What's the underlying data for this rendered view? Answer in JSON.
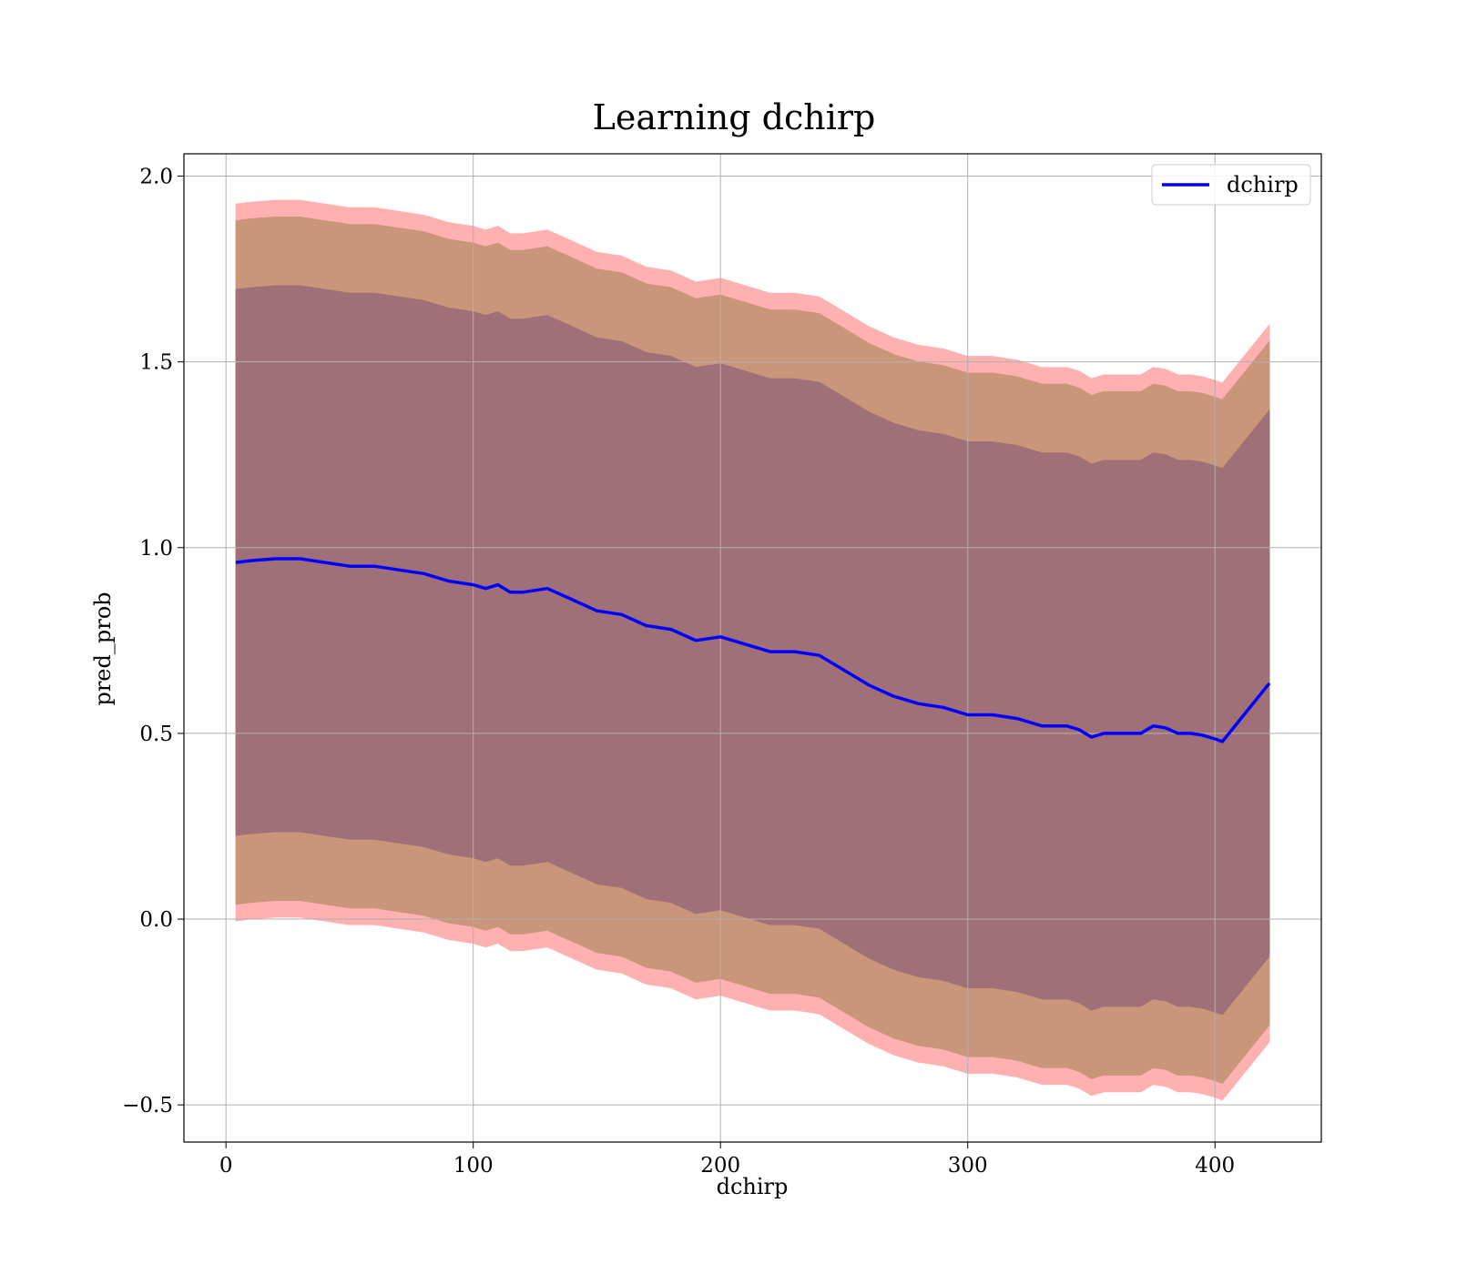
{
  "chart_data": {
    "type": "line",
    "title": "Learning dchirp",
    "xlabel": "dchirp",
    "ylabel": "pred_prob",
    "xlim": [
      -17,
      443
    ],
    "ylim": [
      -0.6,
      2.06
    ],
    "x_ticks": [
      0,
      100,
      200,
      300,
      400
    ],
    "x_tick_labels": [
      "0",
      "100",
      "200",
      "300",
      "400"
    ],
    "y_ticks": [
      -0.5,
      0.0,
      0.5,
      1.0,
      1.5,
      2.0
    ],
    "y_tick_labels": [
      "−0.5",
      "0.0",
      "0.5",
      "1.0",
      "1.5",
      "2.0"
    ],
    "grid": true,
    "legend": {
      "position": "top-right",
      "entries": [
        "dchirp"
      ]
    },
    "colors": {
      "line": "#0000ff",
      "band_outer": "#ffb0b0",
      "band_middle": "#c9967a",
      "band_inner": "#a07078"
    },
    "series": [
      {
        "name": "dchirp",
        "x": [
          4,
          10,
          20,
          30,
          40,
          50,
          60,
          70,
          80,
          90,
          100,
          105,
          110,
          115,
          120,
          130,
          140,
          150,
          160,
          170,
          180,
          190,
          200,
          210,
          220,
          230,
          240,
          250,
          260,
          270,
          280,
          290,
          300,
          310,
          320,
          330,
          340,
          345,
          350,
          355,
          360,
          370,
          375,
          380,
          385,
          390,
          395,
          400,
          403,
          422
        ],
        "y": [
          0.96,
          0.965,
          0.97,
          0.97,
          0.96,
          0.95,
          0.95,
          0.94,
          0.93,
          0.91,
          0.9,
          0.89,
          0.9,
          0.88,
          0.88,
          0.89,
          0.86,
          0.83,
          0.82,
          0.79,
          0.78,
          0.75,
          0.76,
          0.74,
          0.72,
          0.72,
          0.71,
          0.67,
          0.63,
          0.6,
          0.58,
          0.57,
          0.55,
          0.55,
          0.54,
          0.52,
          0.52,
          0.51,
          0.49,
          0.5,
          0.5,
          0.5,
          0.52,
          0.515,
          0.5,
          0.5,
          0.495,
          0.485,
          0.478,
          0.635
        ],
        "band_outer": [
          0.965,
          0.965,
          0.965,
          0.965,
          0.965,
          0.965,
          0.965,
          0.965,
          0.965,
          0.965,
          0.965,
          0.965,
          0.965,
          0.965,
          0.965,
          0.965,
          0.965,
          0.965,
          0.965,
          0.965,
          0.965,
          0.965,
          0.965,
          0.965,
          0.965,
          0.965,
          0.965,
          0.965,
          0.965,
          0.965,
          0.965,
          0.965,
          0.965,
          0.965,
          0.965,
          0.965,
          0.965,
          0.965,
          0.965,
          0.965,
          0.965,
          0.965,
          0.965,
          0.965,
          0.965,
          0.965,
          0.965,
          0.965,
          0.965,
          0.965
        ],
        "band_middle": [
          0.92,
          0.92,
          0.92,
          0.92,
          0.92,
          0.92,
          0.92,
          0.92,
          0.92,
          0.92,
          0.92,
          0.92,
          0.92,
          0.92,
          0.92,
          0.92,
          0.92,
          0.92,
          0.92,
          0.92,
          0.92,
          0.92,
          0.92,
          0.92,
          0.92,
          0.92,
          0.92,
          0.92,
          0.92,
          0.92,
          0.92,
          0.92,
          0.92,
          0.92,
          0.92,
          0.92,
          0.92,
          0.92,
          0.92,
          0.92,
          0.92,
          0.92,
          0.92,
          0.92,
          0.92,
          0.92,
          0.92,
          0.92,
          0.92,
          0.92
        ],
        "band_inner": [
          0.735,
          0.735,
          0.735,
          0.735,
          0.735,
          0.735,
          0.735,
          0.735,
          0.735,
          0.735,
          0.735,
          0.735,
          0.735,
          0.735,
          0.735,
          0.735,
          0.735,
          0.735,
          0.735,
          0.735,
          0.735,
          0.735,
          0.735,
          0.735,
          0.735,
          0.735,
          0.735,
          0.735,
          0.735,
          0.735,
          0.735,
          0.735,
          0.735,
          0.735,
          0.735,
          0.735,
          0.735,
          0.735,
          0.735,
          0.735,
          0.735,
          0.735,
          0.735,
          0.735,
          0.735,
          0.735,
          0.735,
          0.735,
          0.735,
          0.735
        ]
      }
    ]
  }
}
